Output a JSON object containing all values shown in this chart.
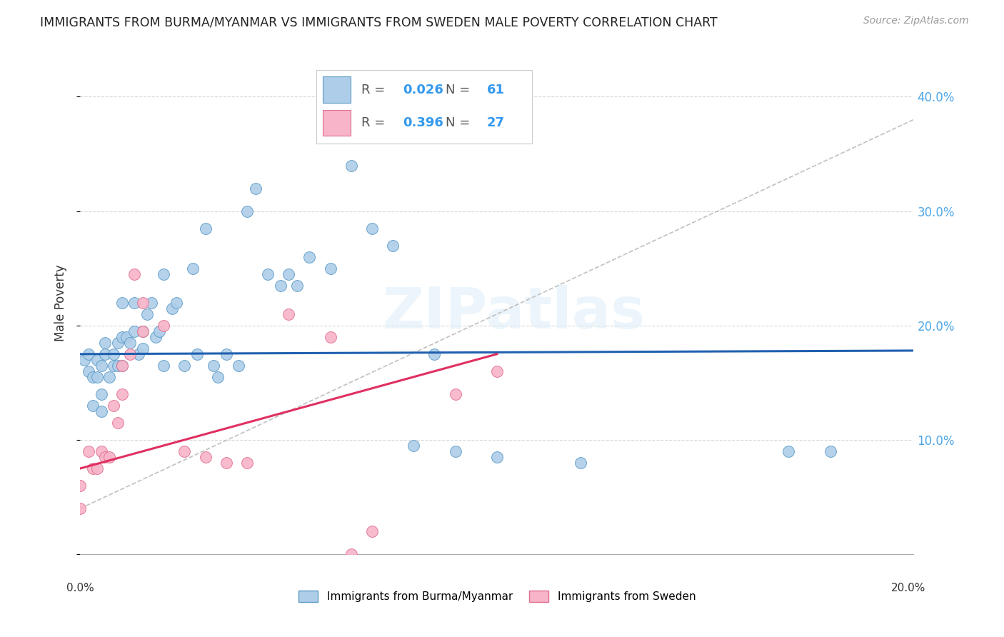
{
  "title": "IMMIGRANTS FROM BURMA/MYANMAR VS IMMIGRANTS FROM SWEDEN MALE POVERTY CORRELATION CHART",
  "source": "Source: ZipAtlas.com",
  "ylabel": "Male Poverty",
  "xlim": [
    0.0,
    0.2
  ],
  "ylim": [
    0.0,
    0.44
  ],
  "yticks": [
    0.0,
    0.1,
    0.2,
    0.3,
    0.4
  ],
  "ytick_labels": [
    "",
    "10.0%",
    "20.0%",
    "30.0%",
    "40.0%"
  ],
  "xtick_left_label": "0.0%",
  "xtick_right_label": "20.0%",
  "watermark": "ZIPatlas",
  "color_burma_fill": "#aecde8",
  "color_burma_edge": "#5b9bc8",
  "color_sweden_fill": "#f8b4c8",
  "color_sweden_edge": "#e07090",
  "color_line_burma": "#2060b0",
  "color_line_sweden": "#e03060",
  "color_dashed": "#c0c0c0",
  "R_burma": "0.026",
  "N_burma": "61",
  "R_sweden": "0.396",
  "N_sweden": "27",
  "legend_r_color": "#3399ee",
  "legend_n_color": "#3399ee",
  "burma_x": [
    0.001,
    0.002,
    0.002,
    0.003,
    0.003,
    0.004,
    0.004,
    0.005,
    0.005,
    0.005,
    0.006,
    0.006,
    0.007,
    0.008,
    0.008,
    0.009,
    0.009,
    0.01,
    0.01,
    0.01,
    0.011,
    0.012,
    0.013,
    0.013,
    0.014,
    0.015,
    0.015,
    0.016,
    0.017,
    0.018,
    0.019,
    0.02,
    0.02,
    0.022,
    0.023,
    0.025,
    0.027,
    0.028,
    0.03,
    0.032,
    0.033,
    0.035,
    0.038,
    0.04,
    0.042,
    0.045,
    0.048,
    0.05,
    0.052,
    0.055,
    0.06,
    0.065,
    0.07,
    0.075,
    0.08,
    0.085,
    0.09,
    0.1,
    0.12,
    0.17,
    0.18
  ],
  "burma_y": [
    0.17,
    0.16,
    0.175,
    0.13,
    0.155,
    0.155,
    0.17,
    0.14,
    0.165,
    0.125,
    0.175,
    0.185,
    0.155,
    0.165,
    0.175,
    0.165,
    0.185,
    0.19,
    0.165,
    0.22,
    0.19,
    0.185,
    0.22,
    0.195,
    0.175,
    0.18,
    0.195,
    0.21,
    0.22,
    0.19,
    0.195,
    0.165,
    0.245,
    0.215,
    0.22,
    0.165,
    0.25,
    0.175,
    0.285,
    0.165,
    0.155,
    0.175,
    0.165,
    0.3,
    0.32,
    0.245,
    0.235,
    0.245,
    0.235,
    0.26,
    0.25,
    0.34,
    0.285,
    0.27,
    0.095,
    0.175,
    0.09,
    0.085,
    0.08,
    0.09,
    0.09
  ],
  "sweden_x": [
    0.0,
    0.0,
    0.002,
    0.003,
    0.004,
    0.005,
    0.006,
    0.007,
    0.008,
    0.009,
    0.01,
    0.01,
    0.012,
    0.013,
    0.015,
    0.015,
    0.02,
    0.025,
    0.03,
    0.035,
    0.04,
    0.05,
    0.06,
    0.065,
    0.07,
    0.09,
    0.1
  ],
  "sweden_y": [
    0.06,
    0.04,
    0.09,
    0.075,
    0.075,
    0.09,
    0.085,
    0.085,
    0.13,
    0.115,
    0.14,
    0.165,
    0.175,
    0.245,
    0.22,
    0.195,
    0.2,
    0.09,
    0.085,
    0.08,
    0.08,
    0.21,
    0.19,
    0.0,
    0.02,
    0.14,
    0.16
  ],
  "burma_line_x": [
    0.0,
    0.2
  ],
  "burma_line_y": [
    0.175,
    0.178
  ],
  "sweden_line_x": [
    0.0,
    0.1
  ],
  "sweden_line_y": [
    0.075,
    0.175
  ],
  "dashed_line_x": [
    0.0,
    0.2
  ],
  "dashed_line_y": [
    0.04,
    0.38
  ]
}
